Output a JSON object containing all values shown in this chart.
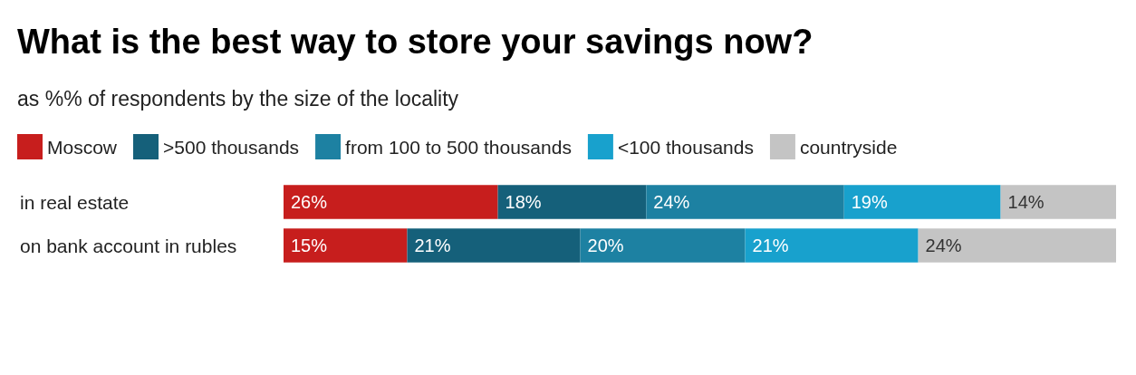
{
  "chart_data": {
    "type": "bar",
    "orientation": "horizontal",
    "stacked": true,
    "title": "What is the best way to store your savings now?",
    "subtitle": "as %% of respondents by the size of the locality",
    "categories": [
      "in real estate",
      "on bank account in rubles"
    ],
    "legend": "top left",
    "series": [
      {
        "name": "Moscow",
        "color": "#c71e1d",
        "values": [
          26,
          15
        ],
        "value_labels": [
          "26%",
          "15%"
        ]
      },
      {
        "name": ">500 thousands",
        "color": "#15607a",
        "values": [
          18,
          21
        ],
        "value_labels": [
          "18%",
          "21%"
        ]
      },
      {
        "name": "from 100 to 500 thousands",
        "color": "#1d81a2",
        "values": [
          24,
          20
        ],
        "value_labels": [
          "24%",
          "20%"
        ]
      },
      {
        "name": "<100 thousands",
        "color": "#18a1cd",
        "values": [
          19,
          21
        ],
        "value_labels": [
          "19%",
          "21%"
        ]
      },
      {
        "name": "countryside",
        "color": "#c4c4c4",
        "values": [
          14,
          24
        ],
        "value_labels": [
          "14%",
          "24%"
        ]
      }
    ]
  }
}
